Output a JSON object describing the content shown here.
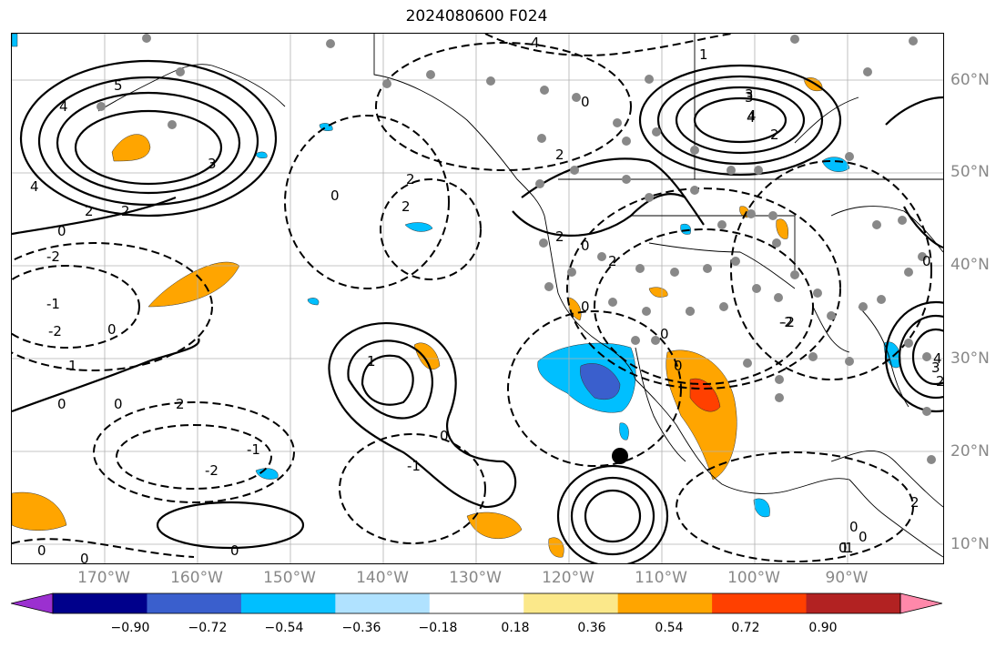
{
  "title": "2024080600 F024",
  "lon_labels": [
    "170°W",
    "160°W",
    "150°W",
    "140°W",
    "130°W",
    "120°W",
    "110°W",
    "100°W",
    "90°W"
  ],
  "lat_labels": [
    "60°N",
    "50°N",
    "40°N",
    "30°N",
    "20°N",
    "10°N"
  ],
  "colorbar": {
    "tick_labels": [
      "−0.90",
      "−0.72",
      "−0.54",
      "−0.36",
      "−0.18",
      "0.18",
      "0.36",
      "0.54",
      "0.72",
      "0.90"
    ],
    "colors": [
      "#9b30d0",
      "#00008b",
      "#3a5fcd",
      "#00bfff",
      "#b0e2ff",
      "#ffffff",
      "#fbe88a",
      "#ffa500",
      "#ff4000",
      "#b22222",
      "#ff88aa"
    ]
  },
  "contour_labels": [
    {
      "text": "4"
    },
    {
      "text": "1"
    },
    {
      "text": "0"
    },
    {
      "text": "3"
    },
    {
      "text": "4"
    },
    {
      "text": "2"
    },
    {
      "text": "5"
    },
    {
      "text": "4"
    },
    {
      "text": "3"
    },
    {
      "text": "2"
    },
    {
      "text": "2"
    },
    {
      "text": "0"
    },
    {
      "text": "4"
    },
    {
      "text": "2"
    },
    {
      "text": "-2"
    },
    {
      "text": "-1"
    },
    {
      "text": "-2"
    },
    {
      "text": "0"
    },
    {
      "text": "1"
    },
    {
      "text": "0"
    },
    {
      "text": "2"
    },
    {
      "text": "0"
    },
    {
      "text": "-2"
    },
    {
      "text": "2"
    },
    {
      "text": "0"
    },
    {
      "text": "2"
    },
    {
      "text": "-1"
    },
    {
      "text": "1"
    },
    {
      "text": "0"
    },
    {
      "text": "-1"
    },
    {
      "text": "0"
    },
    {
      "text": "0"
    },
    {
      "text": "0"
    },
    {
      "text": "3"
    },
    {
      "text": "4"
    },
    {
      "text": "2"
    },
    {
      "text": "0"
    },
    {
      "text": "2"
    },
    {
      "text": "-2"
    },
    {
      "text": "0"
    },
    {
      "text": "0"
    },
    {
      "text": "0"
    },
    {
      "text": "-2"
    },
    {
      "text": "0"
    },
    {
      "text": "0"
    },
    {
      "text": "1"
    },
    {
      "text": "2"
    },
    {
      "text": "3"
    },
    {
      "text": "4"
    },
    {
      "text": "0"
    },
    {
      "text": "1"
    },
    {
      "text": "2"
    },
    {
      "text": "0"
    }
  ]
}
